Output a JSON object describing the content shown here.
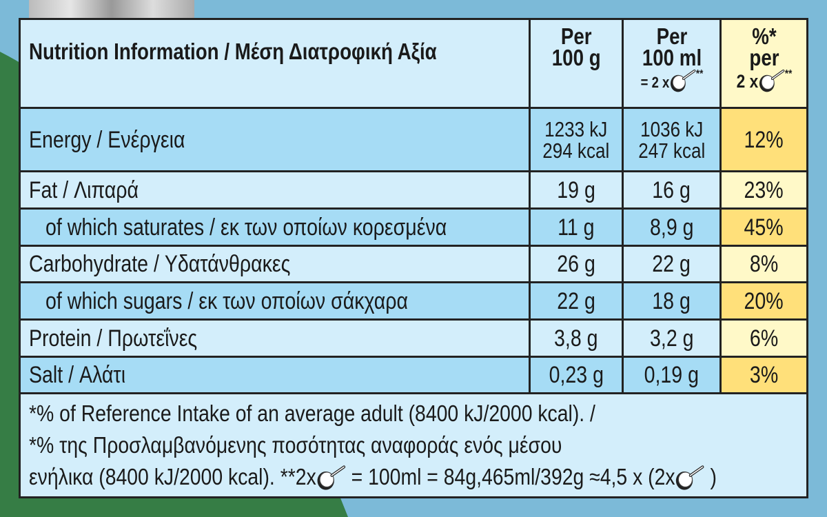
{
  "header": {
    "title": "Nutrition Information / Μέση Διατροφική Αξία",
    "col1": [
      "Per",
      "100 g"
    ],
    "col2": [
      "Per",
      "100 ml",
      "= 2 x",
      "**"
    ],
    "col3": [
      "%*",
      "per",
      "2 x",
      "**"
    ]
  },
  "rows": [
    {
      "label": "Energy / Ενέργεια",
      "per100g": [
        "1233 kJ",
        "294 kcal"
      ],
      "per100ml": [
        "1036 kJ",
        "247 kcal"
      ],
      "ri": "12%"
    },
    {
      "label": "Fat / Λιπαρά",
      "per100g": "19 g",
      "per100ml": "16 g",
      "ri": "23%"
    },
    {
      "label": "of which saturates / εκ των οποίων κορεσμένα",
      "per100g": "11 g",
      "per100ml": "8,9 g",
      "ri": "45%"
    },
    {
      "label": "Carbohydrate / Υδατάνθρακες",
      "per100g": "26 g",
      "per100ml": "22 g",
      "ri": "8%"
    },
    {
      "label": "of which sugars / εκ των οποίων σάκχαρα",
      "per100g": "22 g",
      "per100ml": "18 g",
      "ri": "20%"
    },
    {
      "label": "Protein / Πρωτεΐνες",
      "per100g": "3,8 g",
      "per100ml": "3,2 g",
      "ri": "6%"
    },
    {
      "label": "Salt / Αλάτι",
      "per100g": "0,23 g",
      "per100ml": "0,19 g",
      "ri": "3%"
    }
  ],
  "footnote": {
    "line1": "*% of Reference Intake of an average adult (8400 kJ/2000 kcal). /",
    "line2": "*% της Προσλαμβανόμενης ποσότητας αναφοράς ενός μέσου",
    "line3a": "ενήλικα (8400 kJ/2000 kcal).  **2x",
    "line3b": "= 100ml = 84g,465ml/392g ≈4,5 x (2x",
    "line3c": ")"
  },
  "colors": {
    "light_row": "#d3eefb",
    "dark_row": "#a6dcf5",
    "ri_dark": "#ffe07a",
    "ri_light": "#fff9c8",
    "background": "#7cbad8",
    "green": "#367d45"
  },
  "icons": {
    "spoon": "ice-cream-scoop-icon"
  }
}
